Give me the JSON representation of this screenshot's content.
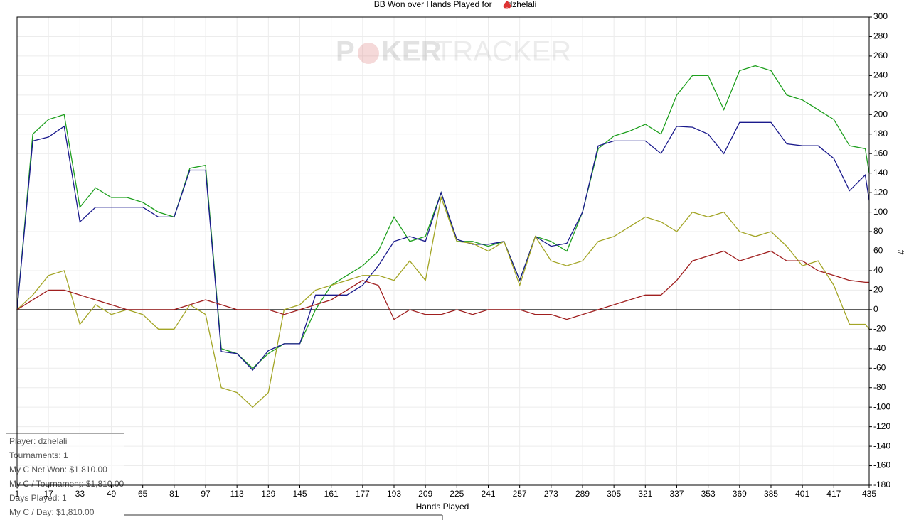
{
  "chart_data": {
    "type": "line",
    "title": "BB Won over Hands Played for",
    "title_player": "dzhelali",
    "watermark": [
      "P",
      "KER",
      "TRACKER"
    ],
    "xlabel": "Hands Played",
    "ylabel": "#",
    "x": [
      1,
      9,
      17,
      25,
      33,
      41,
      49,
      57,
      65,
      73,
      81,
      89,
      97,
      105,
      113,
      121,
      129,
      137,
      145,
      153,
      161,
      169,
      177,
      185,
      193,
      201,
      209,
      217,
      225,
      233,
      241,
      249,
      257,
      265,
      273,
      281,
      289,
      297,
      305,
      313,
      321,
      329,
      337,
      345,
      353,
      361,
      369,
      377,
      385,
      393,
      401,
      409,
      417,
      425,
      433,
      435
    ],
    "series": [
      {
        "color": "#1fa01f",
        "values": [
          0,
          180,
          195,
          200,
          105,
          125,
          115,
          115,
          110,
          100,
          95,
          145,
          148,
          -40,
          -45,
          -60,
          -45,
          -35,
          -35,
          0,
          25,
          35,
          45,
          60,
          95,
          70,
          75,
          120,
          70,
          70,
          65,
          70,
          30,
          75,
          70,
          60,
          100,
          165,
          178,
          183,
          190,
          180,
          220,
          240,
          240,
          205,
          245,
          250,
          245,
          220,
          215,
          205,
          195,
          168,
          165,
          140
        ]
      },
      {
        "color": "#1a1a8c",
        "values": [
          0,
          173,
          177,
          188,
          90,
          105,
          105,
          105,
          105,
          95,
          95,
          143,
          143,
          -43,
          -45,
          -62,
          -42,
          -35,
          -35,
          15,
          15,
          15,
          25,
          45,
          70,
          75,
          70,
          120,
          72,
          67,
          67,
          70,
          30,
          75,
          65,
          68,
          100,
          168,
          173,
          173,
          173,
          160,
          188,
          187,
          180,
          160,
          192,
          192,
          192,
          170,
          168,
          168,
          155,
          122,
          138,
          112
        ]
      },
      {
        "color": "#a3a526",
        "values": [
          0,
          15,
          35,
          40,
          -15,
          5,
          -5,
          0,
          -5,
          -20,
          -20,
          5,
          -5,
          -80,
          -85,
          -100,
          -85,
          0,
          5,
          20,
          25,
          30,
          35,
          35,
          30,
          50,
          30,
          115,
          70,
          68,
          60,
          70,
          25,
          75,
          50,
          45,
          50,
          70,
          75,
          85,
          95,
          90,
          80,
          100,
          95,
          100,
          80,
          75,
          80,
          65,
          45,
          50,
          25,
          -15,
          -15,
          -20
        ]
      },
      {
        "color": "#a01f1f",
        "values": [
          0,
          10,
          20,
          20,
          15,
          10,
          5,
          0,
          0,
          0,
          0,
          5,
          10,
          5,
          0,
          0,
          0,
          -5,
          0,
          5,
          10,
          20,
          30,
          25,
          -10,
          0,
          -5,
          -5,
          0,
          -5,
          0,
          0,
          0,
          -5,
          -5,
          -10,
          -5,
          0,
          5,
          10,
          15,
          15,
          30,
          50,
          55,
          60,
          50,
          55,
          60,
          50,
          50,
          40,
          35,
          30,
          28,
          28
        ]
      }
    ],
    "xlim": [
      1,
      435
    ],
    "xticks": [
      1,
      17,
      33,
      49,
      65,
      81,
      97,
      113,
      129,
      145,
      161,
      177,
      193,
      209,
      225,
      241,
      257,
      273,
      289,
      305,
      321,
      337,
      353,
      369,
      385,
      401,
      417,
      435
    ],
    "ylim": [
      -180,
      300
    ],
    "yticks": [
      -180,
      -160,
      -140,
      -120,
      -100,
      -80,
      -60,
      -40,
      -20,
      0,
      20,
      40,
      60,
      80,
      100,
      120,
      140,
      160,
      180,
      200,
      220,
      240,
      260,
      280,
      300
    ],
    "grid": true,
    "info": [
      "Player: dzhelali",
      "Tournaments: 1",
      "My C Net Won: $1,810.00",
      "My C / Tournament: $1,810.00",
      "Days Played: 1",
      "My C / Day: $1,810.00"
    ]
  }
}
